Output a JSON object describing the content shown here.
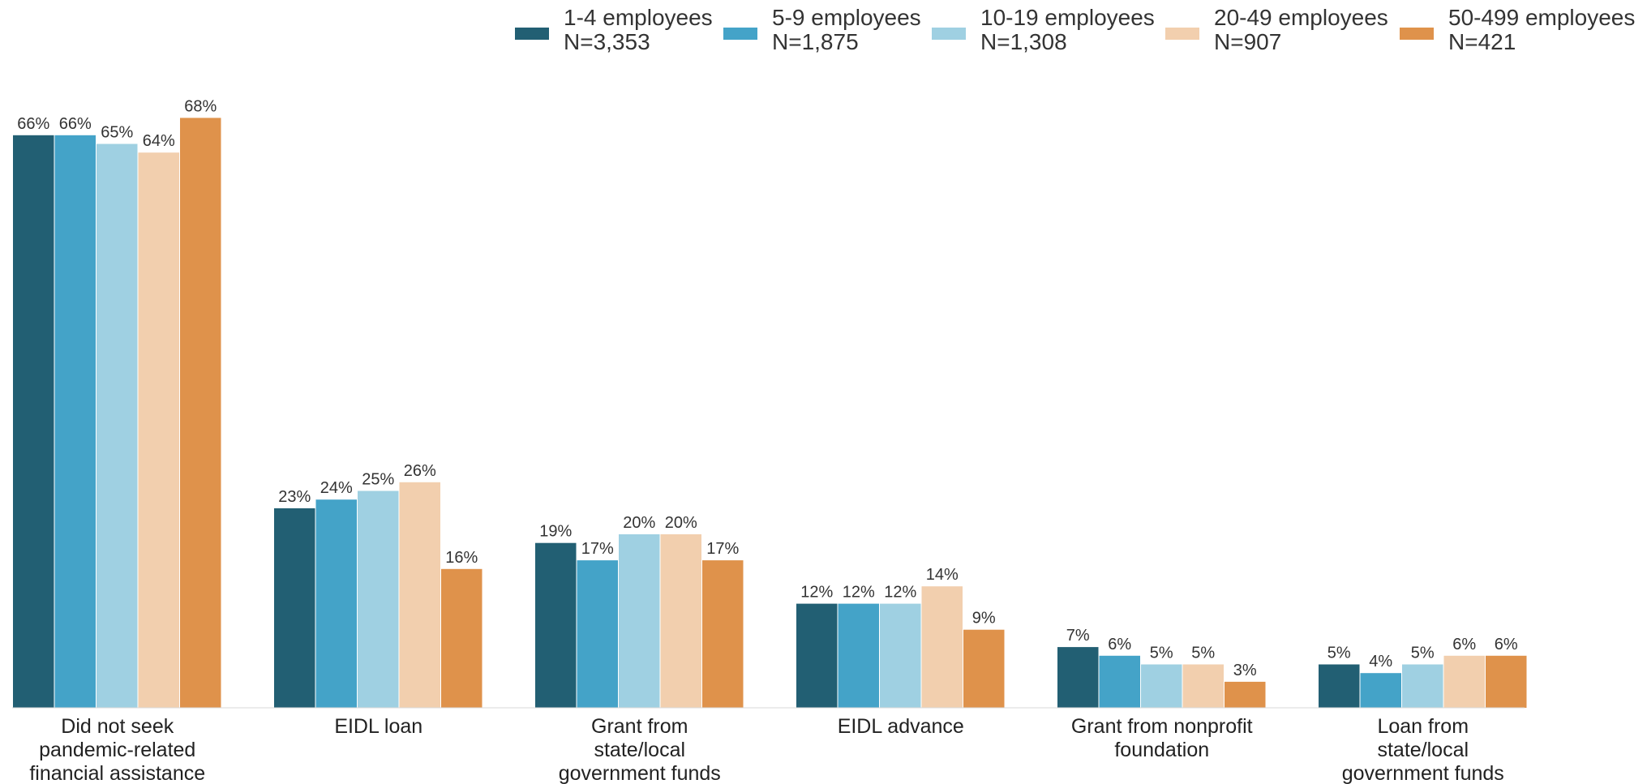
{
  "chart_data": {
    "type": "bar",
    "categories": [
      [
        "Did not seek",
        "pandemic-related",
        "financial assistance"
      ],
      [
        "EIDL loan"
      ],
      [
        "Grant from",
        "state/local",
        "government funds"
      ],
      [
        "EIDL advance"
      ],
      [
        "Grant from nonprofit",
        "foundation"
      ],
      [
        "Loan from",
        "state/local",
        "government funds"
      ]
    ],
    "series": [
      {
        "name": "1-4 employees",
        "n": "N=3,353",
        "color": "#225f73",
        "values": [
          66,
          23,
          19,
          12,
          7,
          5
        ]
      },
      {
        "name": "5-9 employees",
        "n": "N=1,875",
        "color": "#44a3c8",
        "values": [
          66,
          24,
          17,
          12,
          6,
          4
        ]
      },
      {
        "name": "10-19 employees",
        "n": "N=1,308",
        "color": "#9fd0e2",
        "values": [
          65,
          25,
          20,
          12,
          5,
          5
        ]
      },
      {
        "name": "20-49 employees",
        "n": "N=907",
        "color": "#f2cfae",
        "values": [
          64,
          26,
          20,
          14,
          5,
          6
        ]
      },
      {
        "name": "50-499 employees",
        "n": "N=421",
        "color": "#df924b",
        "values": [
          68,
          16,
          17,
          9,
          3,
          6
        ]
      }
    ],
    "value_suffix": "%",
    "ylim": [
      0,
      68
    ],
    "grid": false,
    "legend_position": "top"
  }
}
